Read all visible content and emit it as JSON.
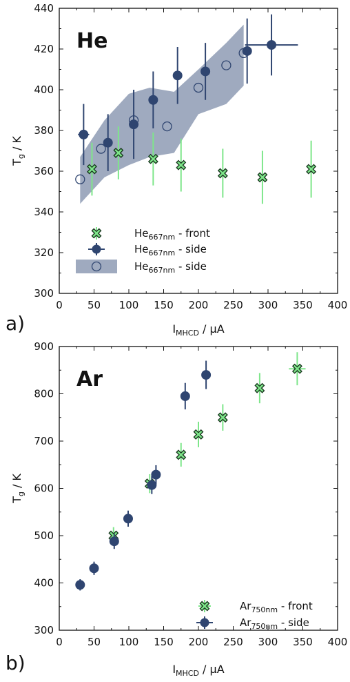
{
  "chart_data": [
    {
      "type": "scatter",
      "panel_label": "a)",
      "title": "He",
      "xlabel": "I",
      "xlabel_sub": "MHCD",
      "xlabel_unit": " / μA",
      "ylabel": "T",
      "ylabel_sub": "g",
      "ylabel_unit": " / K",
      "xlim": [
        0,
        400
      ],
      "ylim": [
        300,
        440
      ],
      "xticks": [
        0,
        50,
        100,
        150,
        200,
        250,
        300,
        350,
        400
      ],
      "yticks": [
        300,
        320,
        340,
        360,
        380,
        400,
        420,
        440
      ],
      "legend_position": "bottom-left",
      "band": {
        "upper": [
          [
            30,
            367
          ],
          [
            65,
            385
          ],
          [
            100,
            398
          ],
          [
            130,
            401
          ],
          [
            165,
            399
          ],
          [
            200,
            410
          ],
          [
            240,
            423
          ],
          [
            265,
            432
          ]
        ],
        "lower": [
          [
            265,
            402
          ],
          [
            240,
            393
          ],
          [
            200,
            388
          ],
          [
            165,
            369
          ],
          [
            130,
            367
          ],
          [
            100,
            363
          ],
          [
            65,
            357
          ],
          [
            30,
            344
          ]
        ]
      },
      "series": [
        {
          "name": "He",
          "name_sub": "667nm",
          "name_suffix": " - front",
          "marker": "x-filled",
          "color": "#7ee68a",
          "points": [
            {
              "x": 47,
              "y": 361,
              "yerr": 13
            },
            {
              "x": 85,
              "y": 369,
              "yerr": 13
            },
            {
              "x": 135,
              "y": 366,
              "yerr": 13
            },
            {
              "x": 175,
              "y": 363,
              "yerr": 13
            },
            {
              "x": 235,
              "y": 359,
              "yerr": 12
            },
            {
              "x": 292,
              "y": 357,
              "yerr": 13
            },
            {
              "x": 362,
              "y": 361,
              "yerr": 14
            }
          ]
        },
        {
          "name": "He",
          "name_sub": "667nm",
          "name_suffix": " - side",
          "marker": "circle-filled",
          "color": "#2f4570",
          "points": [
            {
              "x": 35,
              "y": 378,
              "yerr": 15,
              "xerr": 8
            },
            {
              "x": 70,
              "y": 374,
              "yerr": 14
            },
            {
              "x": 107,
              "y": 383,
              "yerr": 17
            },
            {
              "x": 135,
              "y": 395,
              "yerr": 14
            },
            {
              "x": 170,
              "y": 407,
              "yerr": 14
            },
            {
              "x": 210,
              "y": 409,
              "yerr": 14
            },
            {
              "x": 270,
              "y": 419,
              "yerr": 16
            },
            {
              "x": 305,
              "y": 422,
              "yerr": 15,
              "xerr": 38
            }
          ]
        },
        {
          "name": "He",
          "name_sub": "667nm",
          "name_suffix": " - side",
          "marker": "circle-open",
          "color": "#2f4570",
          "points": [
            {
              "x": 30,
              "y": 356
            },
            {
              "x": 60,
              "y": 371
            },
            {
              "x": 107,
              "y": 385
            },
            {
              "x": 155,
              "y": 382
            },
            {
              "x": 200,
              "y": 401
            },
            {
              "x": 240,
              "y": 412
            },
            {
              "x": 265,
              "y": 418
            }
          ]
        }
      ]
    },
    {
      "type": "scatter",
      "panel_label": "b)",
      "title": "Ar",
      "xlabel": "I",
      "xlabel_sub": "MHCD",
      "xlabel_unit": " / μA",
      "ylabel": "T",
      "ylabel_sub": "g",
      "ylabel_unit": " / K",
      "xlim": [
        0,
        400
      ],
      "ylim": [
        300,
        900
      ],
      "xticks": [
        0,
        50,
        100,
        150,
        200,
        250,
        300,
        350,
        400
      ],
      "yticks": [
        300,
        400,
        500,
        600,
        700,
        800,
        900
      ],
      "legend_position": "bottom-right",
      "series": [
        {
          "name": "Ar",
          "name_sub": "750nm",
          "name_suffix": " - front",
          "marker": "x-filled",
          "color": "#7ee68a",
          "points": [
            {
              "x": 78,
              "y": 500,
              "yerr": 18
            },
            {
              "x": 130,
              "y": 610,
              "yerr": 20
            },
            {
              "x": 175,
              "y": 671,
              "yerr": 25
            },
            {
              "x": 200,
              "y": 714,
              "yerr": 27
            },
            {
              "x": 235,
              "y": 750,
              "yerr": 28
            },
            {
              "x": 288,
              "y": 812,
              "yerr": 32
            },
            {
              "x": 342,
              "y": 853,
              "yerr": 35,
              "xerr": 12
            }
          ]
        },
        {
          "name": "Ar",
          "name_sub": "750nm",
          "name_suffix": " - side",
          "marker": "circle-filled",
          "color": "#2f4570",
          "points": [
            {
              "x": 30,
              "y": 396,
              "yerr": 12
            },
            {
              "x": 50,
              "y": 431,
              "yerr": 14
            },
            {
              "x": 79,
              "y": 488,
              "yerr": 16
            },
            {
              "x": 99,
              "y": 536,
              "yerr": 17
            },
            {
              "x": 133,
              "y": 607,
              "yerr": 19
            },
            {
              "x": 139,
              "y": 629,
              "yerr": 20
            },
            {
              "x": 181,
              "y": 795,
              "yerr": 28
            },
            {
              "x": 211,
              "y": 840,
              "yerr": 30
            }
          ]
        }
      ]
    }
  ]
}
